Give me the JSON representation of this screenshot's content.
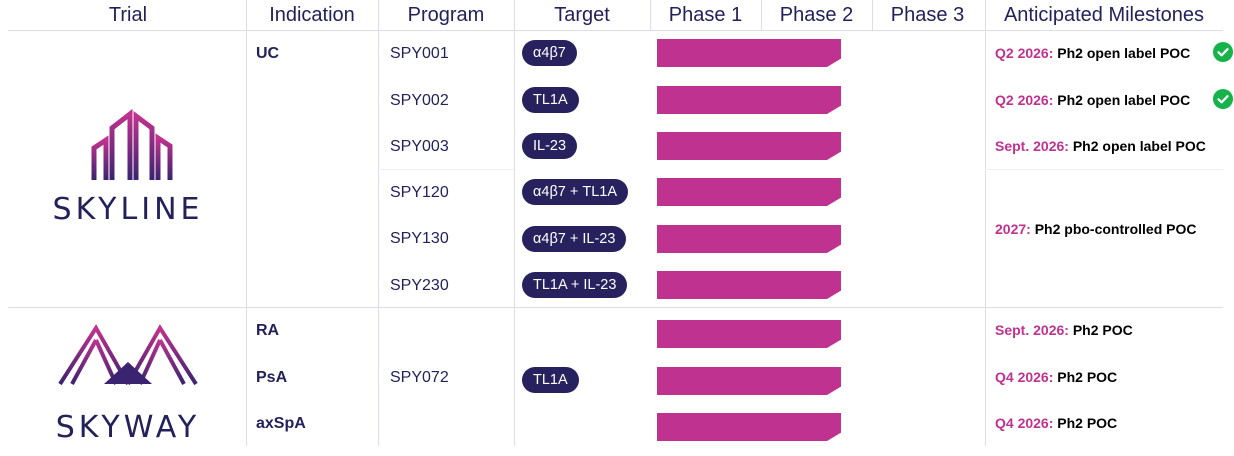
{
  "headers": {
    "trial": "Trial",
    "indication": "Indication",
    "program": "Program",
    "target": "Target",
    "phase1": "Phase 1",
    "phase2": "Phase 2",
    "phase3": "Phase 3",
    "milestones": "Anticipated Milestones"
  },
  "trials": {
    "skyline": {
      "logo_text": "SKYLINE"
    },
    "skyway": {
      "logo_text": "SKYWAY"
    }
  },
  "indications": [
    "UC",
    "RA",
    "PsA",
    "axSpA"
  ],
  "programs": [
    "SPY001",
    "SPY002",
    "SPY003",
    "SPY120",
    "SPY130",
    "SPY230",
    "SPY072"
  ],
  "targets": [
    "α4β7",
    "TL1A",
    "IL-23",
    "α4β7 + TL1A",
    "α4β7 + IL-23",
    "TL1A + IL-23",
    "TL1A"
  ],
  "milestones": [
    {
      "date": "Q2 2026:",
      "text": "Ph2 open label POC",
      "done": true
    },
    {
      "date": "Q2 2026:",
      "text": "Ph2 open label POC",
      "done": true
    },
    {
      "date": "Sept. 2026:",
      "text": "Ph2 open label POC",
      "done": false
    },
    {
      "date": "2027:",
      "text": "Ph2 pbo-controlled POC",
      "done": false
    },
    {
      "date": "Sept. 2026:",
      "text": "Ph2 POC",
      "done": false
    },
    {
      "date": "Q4 2026:",
      "text": "Ph2 POC",
      "done": false
    },
    {
      "date": "Q4 2026:",
      "text": "Ph2 POC",
      "done": false
    }
  ],
  "phase_progress": [
    {
      "row": "SPY001",
      "phase": "Phase 2",
      "fraction_of_phase2": 0.7
    },
    {
      "row": "SPY002",
      "phase": "Phase 2",
      "fraction_of_phase2": 0.7
    },
    {
      "row": "SPY003",
      "phase": "Phase 2",
      "fraction_of_phase2": 0.7
    },
    {
      "row": "SPY120",
      "phase": "Phase 2",
      "fraction_of_phase2": 0.7
    },
    {
      "row": "SPY130",
      "phase": "Phase 2",
      "fraction_of_phase2": 0.7
    },
    {
      "row": "SPY230",
      "phase": "Phase 2",
      "fraction_of_phase2": 0.7
    },
    {
      "row": "SPY072 RA",
      "phase": "Phase 2",
      "fraction_of_phase2": 0.7
    },
    {
      "row": "SPY072 PsA",
      "phase": "Phase 2",
      "fraction_of_phase2": 0.7
    },
    {
      "row": "SPY072 axSpA",
      "phase": "Phase 2",
      "fraction_of_phase2": 0.7
    }
  ],
  "colors": {
    "navy": "#232159",
    "pill": "#27225e",
    "magenta": "#c0328f",
    "check": "#16b34a"
  },
  "icons": {
    "complete": "check-circle-icon",
    "skyline_logo": "skyline-buildings-icon",
    "skyway_logo": "skyway-bridge-icon"
  }
}
